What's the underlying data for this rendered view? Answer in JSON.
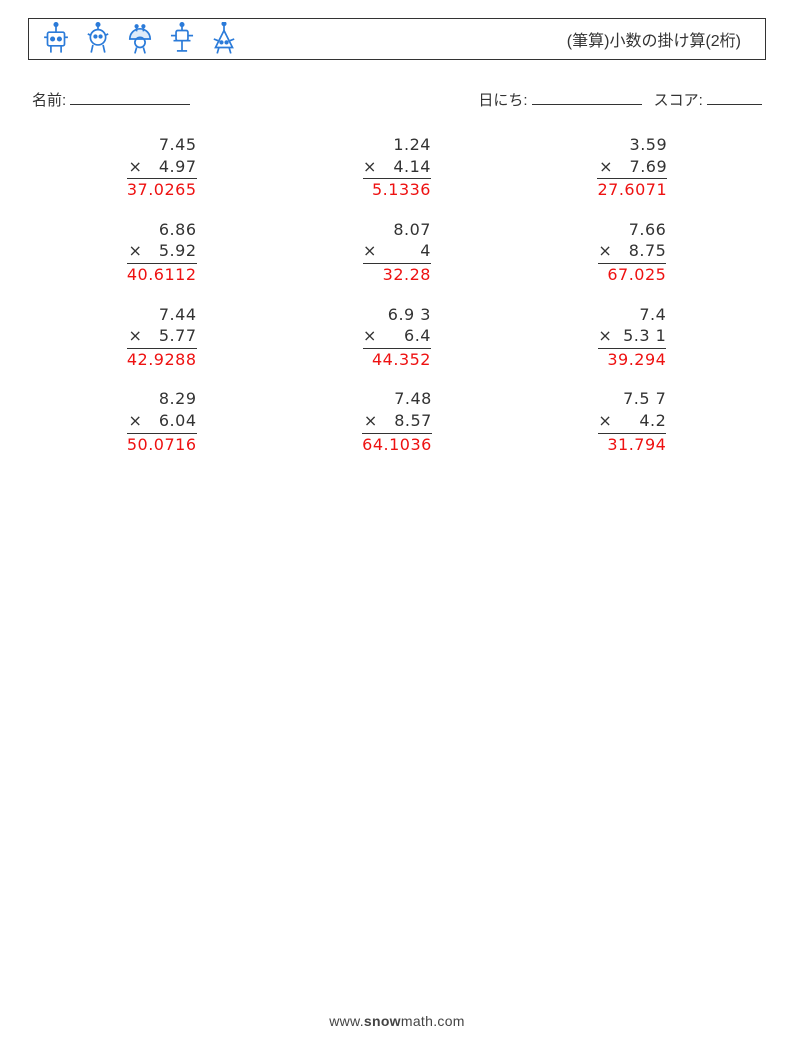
{
  "header": {
    "title": "(筆算)小数の掛け算(2桁)"
  },
  "info": {
    "name_label": "名前:",
    "date_label": "日にち:",
    "score_label": "スコア:"
  },
  "style": {
    "text_color": "#333333",
    "answer_color": "#ee1111",
    "border_color": "#333333",
    "robot_color": "#2b7bd9",
    "background": "#ffffff",
    "title_fontsize": 16,
    "body_fontsize": 15,
    "problem_fontsize": 16
  },
  "problems": [
    {
      "a": "7.45",
      "b": "4.97",
      "ans": "37.0265"
    },
    {
      "a": "1.24",
      "b": "4.14",
      "ans": "5.1336"
    },
    {
      "a": "3.59",
      "b": "7.69",
      "ans": "27.6071"
    },
    {
      "a": "6.86",
      "b": "5.92",
      "ans": "40.6112"
    },
    {
      "a": "8.07",
      "b": "4",
      "ans": "32.28"
    },
    {
      "a": "7.66",
      "b": "8.75",
      "ans": "67.025"
    },
    {
      "a": "7.44",
      "b": "5.77",
      "ans": "42.9288"
    },
    {
      "a": "6.9 3",
      "b": "6.4",
      "ans": "44.352"
    },
    {
      "a": "7.4",
      "b": "5.3 1",
      "ans": "39.294"
    },
    {
      "a": "8.29",
      "b": "6.04",
      "ans": "50.0716"
    },
    {
      "a": "7.48",
      "b": "8.57",
      "ans": "64.1036"
    },
    {
      "a": "7.5 7",
      "b": "4.2",
      "ans": "31.794"
    }
  ],
  "footer": {
    "url": "www.snowmath.com"
  }
}
